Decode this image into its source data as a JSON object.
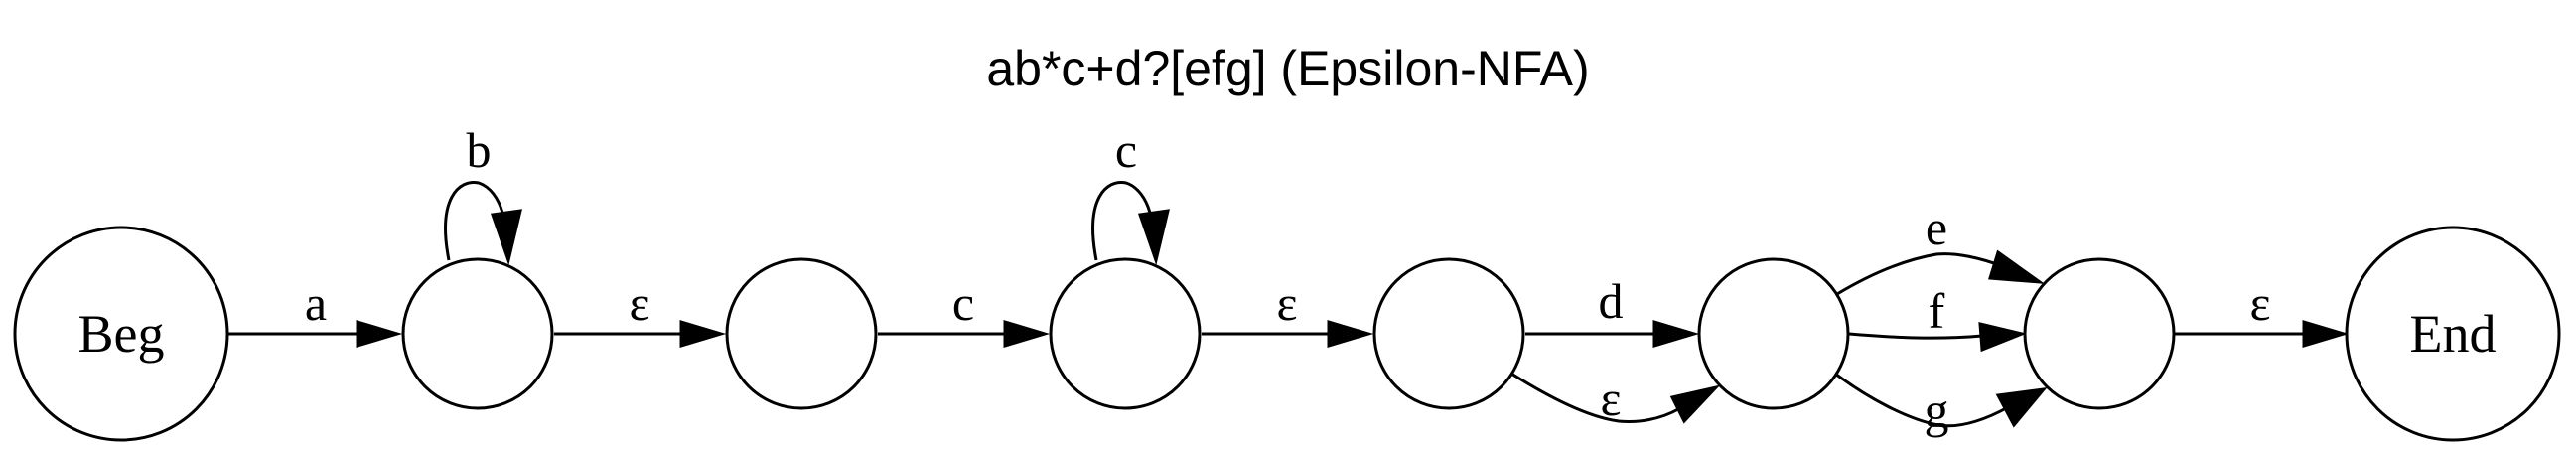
{
  "title": "ab*c+d?[efg] (Epsilon-NFA)",
  "states": [
    {
      "id": "beg",
      "label": "Beg",
      "kind": "start"
    },
    {
      "id": "s1",
      "label": ""
    },
    {
      "id": "s2",
      "label": ""
    },
    {
      "id": "s3",
      "label": ""
    },
    {
      "id": "s4",
      "label": ""
    },
    {
      "id": "s5",
      "label": ""
    },
    {
      "id": "s6",
      "label": ""
    },
    {
      "id": "end",
      "label": "End",
      "kind": "end"
    }
  ],
  "transitions": [
    {
      "from": "beg",
      "to": "s1",
      "label": "a"
    },
    {
      "from": "s1",
      "to": "s1",
      "label": "b"
    },
    {
      "from": "s1",
      "to": "s2",
      "label": "ε"
    },
    {
      "from": "s2",
      "to": "s3",
      "label": "c"
    },
    {
      "from": "s3",
      "to": "s3",
      "label": "c"
    },
    {
      "from": "s3",
      "to": "s4",
      "label": "ε"
    },
    {
      "from": "s4",
      "to": "s5",
      "label": "d"
    },
    {
      "from": "s4",
      "to": "s5",
      "label": "ε"
    },
    {
      "from": "s5",
      "to": "s6",
      "label": "e"
    },
    {
      "from": "s5",
      "to": "s6",
      "label": "f"
    },
    {
      "from": "s5",
      "to": "s6",
      "label": "g"
    },
    {
      "from": "s6",
      "to": "end",
      "label": "ε"
    }
  ]
}
